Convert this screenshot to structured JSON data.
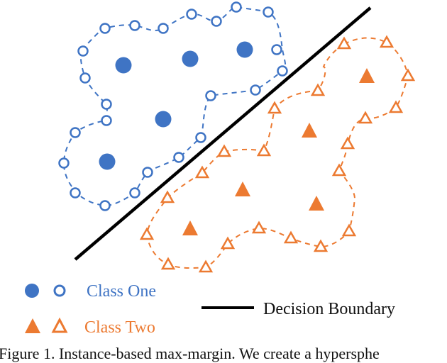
{
  "colors": {
    "class_one": "#3f74c4",
    "class_two": "#ec7a31",
    "boundary": "#000000"
  },
  "legend": {
    "class_one": "Class One",
    "class_two": "Class Two",
    "boundary": "Decision Boundary"
  },
  "caption": "Figure 1. Instance-based max-margin.  We create a hypersphe"
}
